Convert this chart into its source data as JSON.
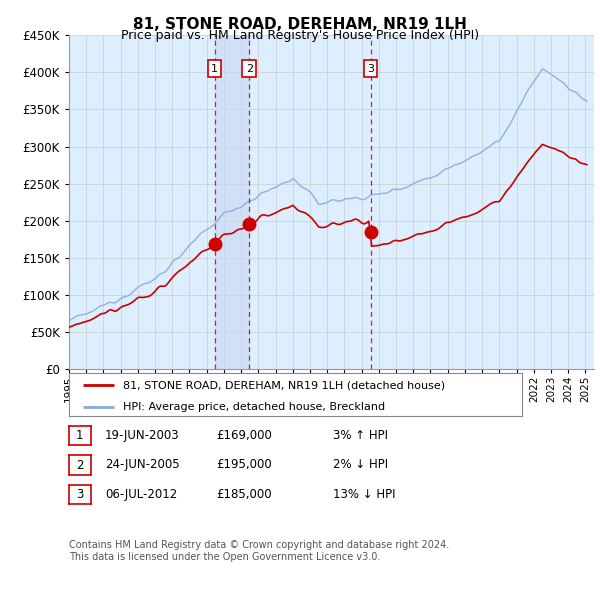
{
  "title": "81, STONE ROAD, DEREHAM, NR19 1LH",
  "subtitle": "Price paid vs. HM Land Registry's House Price Index (HPI)",
  "ylim": [
    0,
    450000
  ],
  "xlim_start": 1995.0,
  "xlim_end": 2025.5,
  "transactions": [
    {
      "date_num": 2003.46,
      "price": 169000,
      "label": "1"
    },
    {
      "date_num": 2005.48,
      "price": 195000,
      "label": "2"
    },
    {
      "date_num": 2012.52,
      "price": 185000,
      "label": "3"
    }
  ],
  "transaction_table": [
    {
      "num": "1",
      "date": "19-JUN-2003",
      "price": "£169,000",
      "hpi": "3% ↑ HPI"
    },
    {
      "num": "2",
      "date": "24-JUN-2005",
      "price": "£195,000",
      "hpi": "2% ↓ HPI"
    },
    {
      "num": "3",
      "date": "06-JUL-2012",
      "price": "£185,000",
      "hpi": "13% ↓ HPI"
    }
  ],
  "legend_line1": "81, STONE ROAD, DEREHAM, NR19 1LH (detached house)",
  "legend_line2": "HPI: Average price, detached house, Breckland",
  "footnote1": "Contains HM Land Registry data © Crown copyright and database right 2024.",
  "footnote2": "This data is licensed under the Open Government Licence v3.0.",
  "line_color_red": "#cc0000",
  "line_color_blue": "#88aadd",
  "bg_color": "#ddeeff",
  "grid_color": "#cccccc",
  "dashed_color": "#cc0000",
  "shade_color": "#c8d8f0"
}
